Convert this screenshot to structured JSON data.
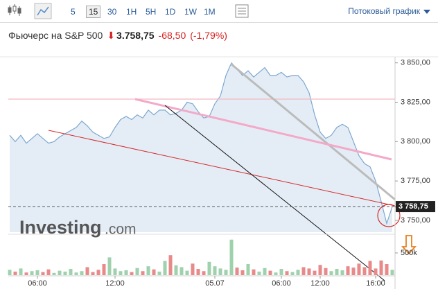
{
  "toolbar": {
    "intervals": [
      "5",
      "15",
      "30",
      "1H",
      "5H",
      "1D",
      "1W",
      "1M"
    ],
    "selected_index": 1,
    "mode": "Потоковый график"
  },
  "header": {
    "name": "Фьючерс на S&P 500",
    "price": "3.758,75",
    "change": "-68,50",
    "change_pct": "(-1,79%)"
  },
  "logo": {
    "brand": "Investing",
    "suffix": ".com"
  },
  "chart_data": [
    {
      "type": "area",
      "color": "#7ea7cf",
      "fill": "#e4edf6",
      "categories": [
        null,
        null,
        null,
        null,
        null,
        "06:00",
        null,
        null,
        null,
        null,
        null,
        null,
        null,
        null,
        null,
        null,
        null,
        null,
        null,
        "12:00",
        null,
        null,
        null,
        null,
        null,
        null,
        null,
        null,
        null,
        null,
        null,
        null,
        null,
        null,
        null,
        null,
        null,
        "05.07",
        null,
        null,
        null,
        null,
        null,
        null,
        null,
        null,
        null,
        null,
        null,
        "06:00",
        null,
        null,
        null,
        null,
        null,
        null,
        "12:00",
        null,
        null,
        null,
        null,
        null,
        null,
        null,
        null,
        null,
        "16:00",
        null,
        null,
        null
      ],
      "values": [
        3804,
        3800,
        3804,
        3799,
        3802,
        3805,
        3802,
        3799,
        3800,
        3803,
        3805,
        3807,
        3809,
        3813,
        3810,
        3806,
        3804,
        3802,
        3803,
        3809,
        3814,
        3816,
        3814,
        3817,
        3815,
        3820,
        3817,
        3820,
        3820,
        3817,
        3818,
        3820,
        3825,
        3824,
        3819,
        3815,
        3816,
        3824,
        3829,
        3842,
        3850,
        3846,
        3842,
        3845,
        3841,
        3844,
        3847,
        3842,
        3842,
        3844,
        3841,
        3842,
        3842,
        3838,
        3831,
        3817,
        3806,
        3802,
        3804,
        3809,
        3811,
        3809,
        3800,
        3791,
        3786,
        3784,
        3775,
        3762,
        3748,
        3758.75
      ],
      "last_label": "3 758,75",
      "ylim": [
        3742.5,
        3852.5
      ],
      "yticks": [
        {
          "value": 3750,
          "label": "3 750,00"
        },
        {
          "value": 3775,
          "label": "3 775,00"
        },
        {
          "value": 3800,
          "label": "3 800,00"
        },
        {
          "value": 3825,
          "label": "3 825,00"
        },
        {
          "value": 3850,
          "label": "3 850,00"
        }
      ]
    },
    {
      "type": "bar",
      "up_color": "#9fd1ad",
      "down_color": "#e88a8a",
      "values": [
        120000,
        80000,
        150000,
        60000,
        90000,
        110000,
        70000,
        130000,
        50000,
        100000,
        80000,
        140000,
        60000,
        90000,
        180000,
        70000,
        120000,
        250000,
        400000,
        150000,
        90000,
        110000,
        70000,
        160000,
        90000,
        200000,
        130000,
        80000,
        320000,
        450000,
        220000,
        180000,
        100000,
        260000,
        140000,
        90000,
        300000,
        200000,
        150000,
        120000,
        800000,
        170000,
        110000,
        250000,
        130000,
        80000,
        160000,
        100000,
        60000,
        140000,
        90000,
        70000,
        120000,
        180000,
        150000,
        100000,
        230000,
        160000,
        90000,
        140000,
        110000,
        200000,
        170000,
        260000,
        180000,
        320000,
        150000,
        330000,
        250000,
        120000
      ],
      "ylim": [
        0,
        890000
      ],
      "yticks": [
        {
          "value": 500000,
          "label": "500k"
        }
      ]
    }
  ]
}
